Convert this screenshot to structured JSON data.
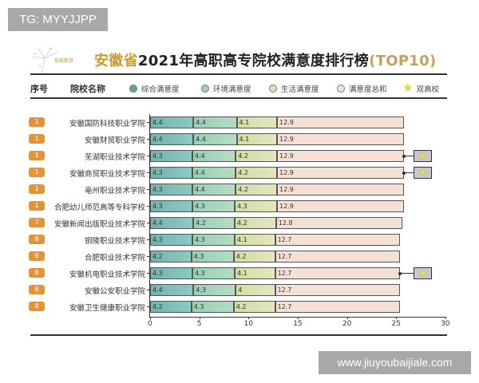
{
  "watermark_top": "TG: MYYJJPP",
  "watermark_bottom": "www.jiuyoubaijiale.com",
  "logo_text": "智能教育",
  "title": {
    "prefix": "安徽省",
    "main": "2021年高职高专院校满意度排行榜",
    "suffix": "(TOP10)"
  },
  "header": {
    "rank_col": "序号",
    "name_col": "院校名称"
  },
  "legend": [
    {
      "label": "综合满意度",
      "color": "#5fa894"
    },
    {
      "label": "环境满意度",
      "color": "#9dcfc3"
    },
    {
      "label": "生活满意度",
      "color": "#dfe2bf"
    },
    {
      "label": "满意度总和",
      "color": "#ebe6e3"
    },
    {
      "label": "双高校",
      "icon": "star-icon",
      "color": "#f1e23a"
    }
  ],
  "chart_data": {
    "type": "bar",
    "orientation": "horizontal-stacked",
    "title": "安徽省2021年高职高专院校满意度排行榜(TOP10)",
    "xlabel": "",
    "ylabel": "",
    "xlim": [
      0,
      30
    ],
    "x_ticks": [
      "0",
      "5",
      "10",
      "15",
      "20",
      "25",
      "30"
    ],
    "categories": [
      "安徽国防科技职业学院",
      "安徽财贸职业学院",
      "芜湖职业技术学院",
      "安徽商贸职业技术学院",
      "亳州职业技术学院",
      "合肥幼儿师范高等专科学校",
      "安徽新闻出版职业技术学院",
      "铜陵职业技术学院",
      "合肥职业技术学院",
      "安徽机电职业技术学院",
      "安徽公安职业学院",
      "安徽卫生健康职业学院"
    ],
    "ranks": [
      "1",
      "1",
      "1",
      "1",
      "1",
      "1",
      "7",
      "8",
      "8",
      "8",
      "8",
      "8"
    ],
    "double_high": [
      false,
      false,
      true,
      true,
      false,
      false,
      false,
      false,
      false,
      true,
      false,
      false
    ],
    "series": [
      {
        "name": "综合满意度",
        "values": [
          4.4,
          4.4,
          4.3,
          4.3,
          4.3,
          4.3,
          4.4,
          4.3,
          4.2,
          4.3,
          4.4,
          4.2
        ]
      },
      {
        "name": "环境满意度",
        "values": [
          4.4,
          4.4,
          4.4,
          4.4,
          4.4,
          4.3,
          4.2,
          4.3,
          4.3,
          4.3,
          4.3,
          4.3
        ]
      },
      {
        "name": "生活满意度",
        "values": [
          4.1,
          4.1,
          4.2,
          4.2,
          4.2,
          4.3,
          4.2,
          4.1,
          4.2,
          4.1,
          4,
          4.2
        ]
      },
      {
        "name": "满意度总和",
        "values": [
          12.9,
          12.9,
          12.9,
          12.9,
          12.9,
          12.9,
          12.8,
          12.7,
          12.7,
          12.7,
          12.7,
          12.7
        ]
      }
    ],
    "legend_position": "top",
    "grid": false
  }
}
